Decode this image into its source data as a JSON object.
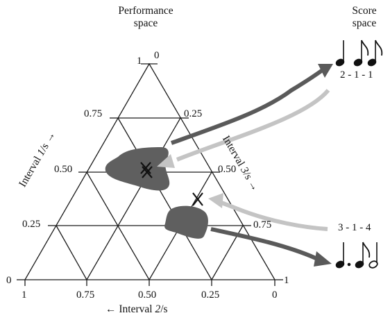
{
  "titles": {
    "performance_line1": "Performance",
    "performance_line2": "space",
    "score_line1": "Score",
    "score_line2": "space"
  },
  "axes": {
    "left": {
      "prefix": "Interval ",
      "italic": "1",
      "suffix": "/s",
      "arrow": "→"
    },
    "right": {
      "prefix": "Interval ",
      "italic": "3",
      "suffix": "/s",
      "arrow": "→"
    },
    "bottom": {
      "arrow": "←",
      "prefix": " Interval ",
      "italic": "2",
      "suffix": "/s"
    }
  },
  "ticks": {
    "left": [
      "1",
      "0.75",
      "0.50",
      "0.25",
      "0"
    ],
    "right": [
      "0",
      "0.25",
      "0.50",
      "0.75",
      "1"
    ],
    "bottom": [
      "1",
      "0.75",
      "0.50",
      "0.25",
      "0"
    ]
  },
  "rhythms": {
    "upper_label": "2 - 1 - 1",
    "lower_label": "3 - 1 - 4",
    "upper_notes": [
      "quarter-note",
      "eighth-note",
      "eighth-note"
    ],
    "lower_notes": [
      "dotted-quarter-note",
      "eighth-note",
      "half-note"
    ]
  },
  "markers": {
    "symbol": "X"
  },
  "colors": {
    "ink": "#111111",
    "blob": "#5f5f5f",
    "dark_arrow": "#5a5a5a",
    "light_arrow": "#c4c4c4"
  }
}
